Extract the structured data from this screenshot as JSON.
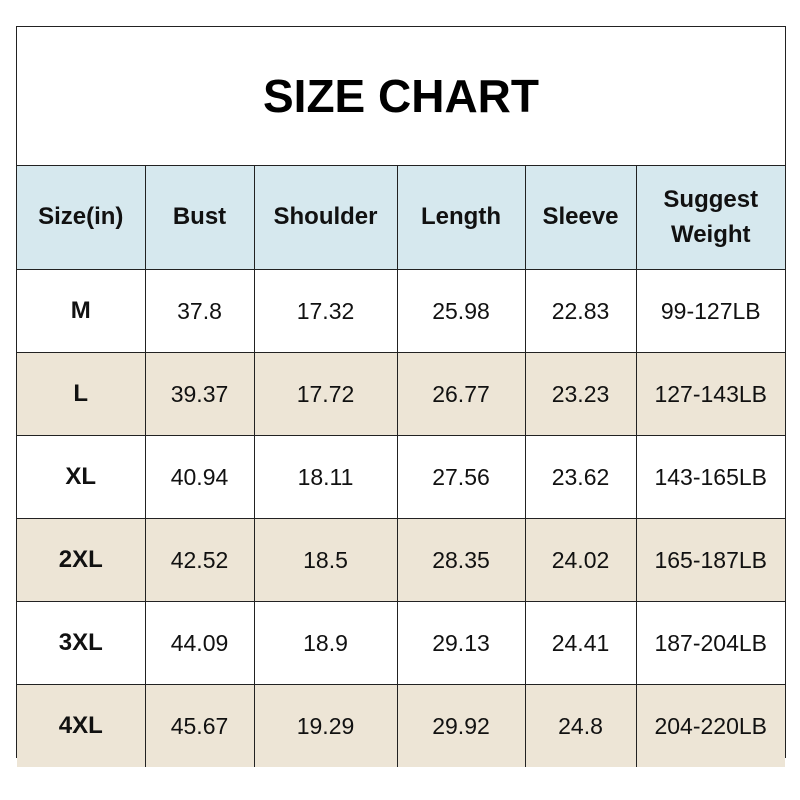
{
  "title": "SIZE CHART",
  "colors": {
    "header_bg": "#d6e8ee",
    "alt_row_bg": "#ede5d6",
    "border": "#222222"
  },
  "columns": [
    "Size(in)",
    "Bust",
    "Shoulder",
    "Length",
    "Sleeve",
    "Suggest Weight"
  ],
  "rows": [
    [
      "M",
      "37.8",
      "17.32",
      "25.98",
      "22.83",
      "99-127LB"
    ],
    [
      "L",
      "39.37",
      "17.72",
      "26.77",
      "23.23",
      "127-143LB"
    ],
    [
      "XL",
      "40.94",
      "18.11",
      "27.56",
      "23.62",
      "143-165LB"
    ],
    [
      "2XL",
      "42.52",
      "18.5",
      "28.35",
      "24.02",
      "165-187LB"
    ],
    [
      "3XL",
      "44.09",
      "18.9",
      "29.13",
      "24.41",
      "187-204LB"
    ],
    [
      "4XL",
      "45.67",
      "19.29",
      "29.92",
      "24.8",
      "204-220LB"
    ]
  ]
}
